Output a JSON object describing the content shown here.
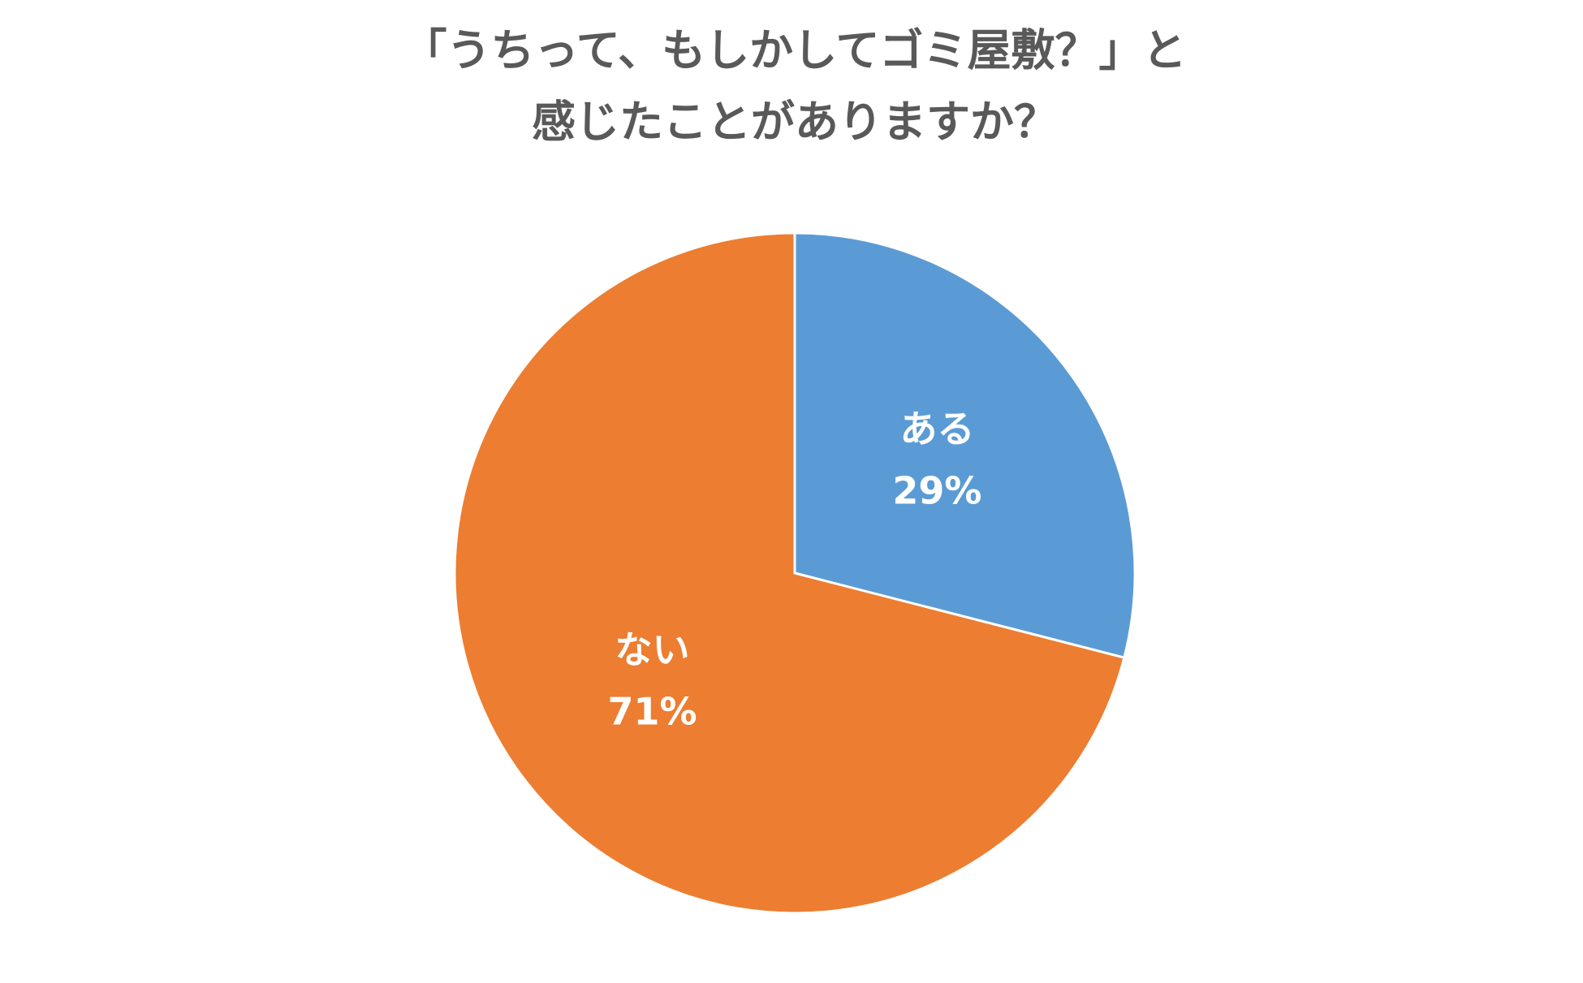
{
  "chart_data": {
    "type": "pie",
    "title": [
      "「うちって、もしかしてゴミ屋敷？」と",
      "感じたことがありますか？"
    ],
    "categories": [
      "ある",
      "ない"
    ],
    "values": [
      29,
      71
    ],
    "value_labels": [
      "29%",
      "71%"
    ],
    "colors": [
      "#5b9bd5",
      "#ed7d31"
    ]
  }
}
